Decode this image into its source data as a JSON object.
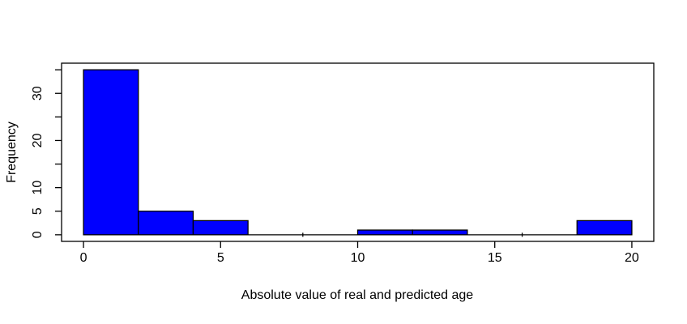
{
  "figure": {
    "background": "#ffffff"
  },
  "chart_data": {
    "type": "bar",
    "subtype": "histogram",
    "title": "",
    "xlabel": "Absolute value of real and predicted age",
    "ylabel": "Frequency",
    "bin_breaks": [
      0,
      2,
      4,
      6,
      8,
      10,
      12,
      14,
      16,
      18,
      20
    ],
    "counts": [
      35,
      5,
      3,
      0,
      0,
      1,
      1,
      0,
      0,
      3
    ],
    "x_ticks": [
      0,
      5,
      10,
      15,
      20
    ],
    "x_tick_labels": [
      "0",
      "5",
      "10",
      "15",
      "20"
    ],
    "y_ticks": [
      0,
      5,
      10,
      15,
      20,
      25,
      30,
      35
    ],
    "y_tick_labels": [
      "0",
      "5",
      "10",
      "",
      "20",
      "",
      "30",
      ""
    ],
    "xlim": [
      0,
      20
    ],
    "ylim": [
      0,
      35
    ],
    "grid": false,
    "legend_position": "none",
    "bar_fill": "#0000ff",
    "bar_stroke": "#000000",
    "axis_color": "#000000",
    "text_color": "#000000"
  }
}
